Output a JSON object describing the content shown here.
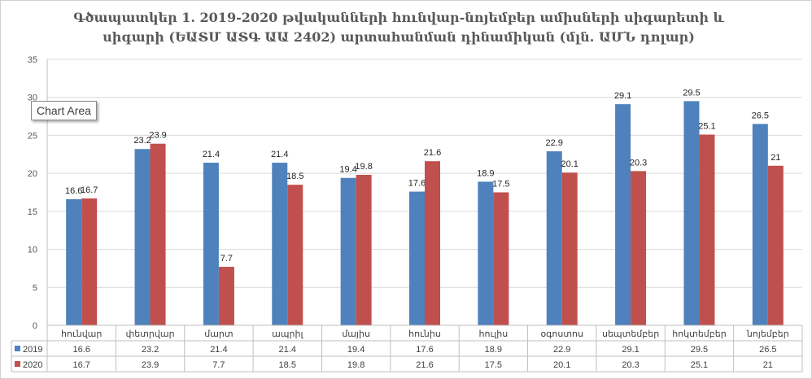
{
  "chart_data": {
    "type": "bar",
    "title": "Գծապատկեր 1. 2019-2020 թվականների հունվար-նոյեմբեր ամիսների սիգարետի և սիգարի (ԵԱՏՄ ԱՏԳ ԱԱ 2402) արտահանման դինամիկան (մլն. ԱՄՆ դոլար)",
    "categories": [
      "հունվար",
      "փետրվար",
      "մարտ",
      "ապրիլ",
      "մայիս",
      "հունիս",
      "հուլիս",
      "օգոստոս",
      "սեպտեմբեր",
      "հոկտեմբեր",
      "նոյեմբեր"
    ],
    "series": [
      {
        "name": "2019",
        "color": "#4f81bd",
        "values": [
          16.6,
          23.2,
          21.4,
          21.4,
          19.4,
          17.6,
          18.9,
          22.9,
          29.1,
          29.5,
          26.5
        ]
      },
      {
        "name": "2020",
        "color": "#c0504d",
        "values": [
          16.7,
          23.9,
          7.7,
          18.5,
          19.8,
          21.6,
          17.5,
          20.1,
          20.3,
          25.1,
          21
        ]
      }
    ],
    "ylim": [
      0,
      35
    ],
    "yticks": [
      0,
      5,
      10,
      15,
      20,
      25,
      30,
      35
    ],
    "grid": true,
    "legend": "data-table"
  },
  "ui": {
    "tooltip_label": "Chart Area"
  }
}
